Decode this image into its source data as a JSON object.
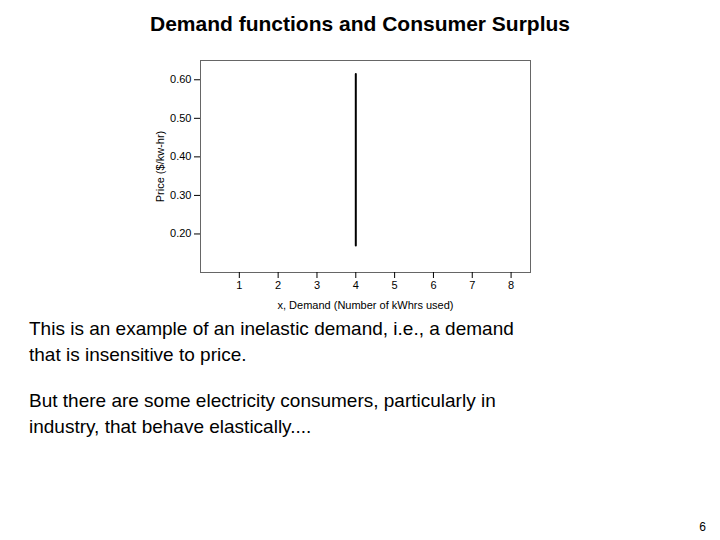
{
  "chart_data": {
    "type": "line",
    "title": "Demand functions and Consumer Surplus",
    "xlabel": "x, Demand (Number of kWhrs used)",
    "ylabel": "Price ($/kw-hr)",
    "x": [
      4,
      4
    ],
    "values": [
      0.17,
      0.615
    ],
    "color": "#000000",
    "xlim": [
      0,
      8.5
    ],
    "ylim": [
      0.1,
      0.65
    ],
    "xticks": [
      1,
      2,
      3,
      4,
      5,
      6,
      7,
      8
    ],
    "yticks": [
      {
        "value": 0.2,
        "label": "0.20"
      },
      {
        "value": 0.3,
        "label": "0.30"
      },
      {
        "value": 0.4,
        "label": "0.40"
      },
      {
        "value": 0.5,
        "label": "0.50"
      },
      {
        "value": 0.6,
        "label": "0.60"
      }
    ],
    "grid": false,
    "annotations": [
      "This is an example of an inelastic demand, i.e., a demand",
      "that is insensitive to price.",
      "But there are some electricity consumers, particularly in",
      "industry, that behave elastically....",
      "6"
    ]
  }
}
